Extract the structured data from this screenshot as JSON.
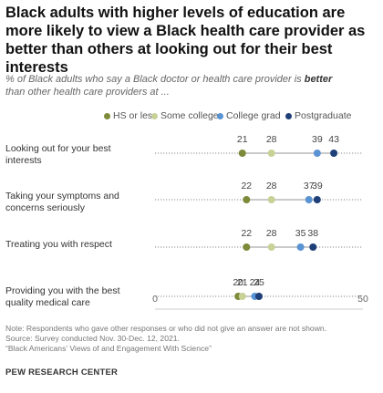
{
  "title": "Black adults with higher levels of education are more likely to view a Black health care provider as better than others at looking out for their best interests",
  "subtitle_pre": "% of Black adults who say a Black doctor or health care provider is ",
  "subtitle_bold": "better",
  "subtitle_post": " than other health care providers at ...",
  "colors": {
    "hs_or_less": "#7c8a3a",
    "some_college": "#c8d196",
    "college_grad": "#5a93d3",
    "postgraduate": "#1f3f78",
    "dotline": "#888888"
  },
  "chart_data": {
    "type": "dot",
    "xlim": [
      0,
      50
    ],
    "tick_labels": [
      "0",
      "50"
    ],
    "legend_position": "top",
    "series": [
      {
        "name": "HS or less",
        "values": [
          21,
          22,
          22,
          20
        ]
      },
      {
        "name": "Some college",
        "values": [
          28,
          28,
          28,
          21
        ]
      },
      {
        "name": "College grad",
        "values": [
          39,
          37,
          35,
          24
        ]
      },
      {
        "name": "Postgraduate",
        "values": [
          43,
          39,
          38,
          25
        ]
      }
    ],
    "categories": [
      "Looking out for your best interests",
      "Taking your symptoms and concerns seriously",
      "Treating you with respect",
      "Providing you with the best quality medical care"
    ]
  },
  "rows": [
    {
      "line1": "Looking out for your best",
      "line2": "interests"
    },
    {
      "line1": "Taking your symptoms and",
      "line2": "concerns seriously"
    },
    {
      "line1": "Treating you with respect",
      "line2": ""
    },
    {
      "line1": "Providing you with the best",
      "line2": "quality medical care"
    }
  ],
  "point_labels": [
    [
      "21",
      "28",
      "39",
      "43"
    ],
    [
      "22",
      "28",
      "37",
      "39"
    ],
    [
      "22",
      "28",
      "35",
      "38"
    ],
    [
      "20",
      "21",
      "24",
      "25"
    ]
  ],
  "axis": {
    "min_label": "0",
    "max_label": "50"
  },
  "note": "Note: Respondents who gave other responses or who did not give an answer are not shown.",
  "source": "Source: Survey conducted Nov. 30-Dec. 12, 2021.",
  "report": "“Black Americans’ Views of and Engagement With Science”",
  "brand": "PEW RESEARCH CENTER"
}
